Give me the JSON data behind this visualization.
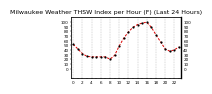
{
  "title": "Milwaukee Weather THSW Index per Hour (F) (Last 24 Hours)",
  "title_fontsize": 4.5,
  "background_color": "#ffffff",
  "plot_bg_color": "#ffffff",
  "line_color": "#dd0000",
  "marker_color": "#000000",
  "marker_size": 2.5,
  "line_width": 0.7,
  "ylim": [
    -20,
    110
  ],
  "yticks": [
    0,
    10,
    20,
    30,
    40,
    50,
    60,
    70,
    80,
    90,
    100
  ],
  "ytick_fontsize": 3.0,
  "xtick_fontsize": 3.0,
  "grid_color": "#999999",
  "hours": [
    0,
    1,
    2,
    3,
    4,
    5,
    6,
    7,
    8,
    9,
    10,
    11,
    12,
    13,
    14,
    15,
    16,
    17,
    18,
    19,
    20,
    21,
    22,
    23
  ],
  "values": [
    52,
    42,
    32,
    26,
    25,
    25,
    25,
    25,
    20,
    28,
    48,
    65,
    78,
    88,
    94,
    97,
    99,
    88,
    72,
    57,
    42,
    37,
    40,
    46
  ],
  "vgrid_positions": [
    0,
    2,
    4,
    6,
    8,
    10,
    12,
    14,
    16,
    18,
    20,
    22
  ]
}
